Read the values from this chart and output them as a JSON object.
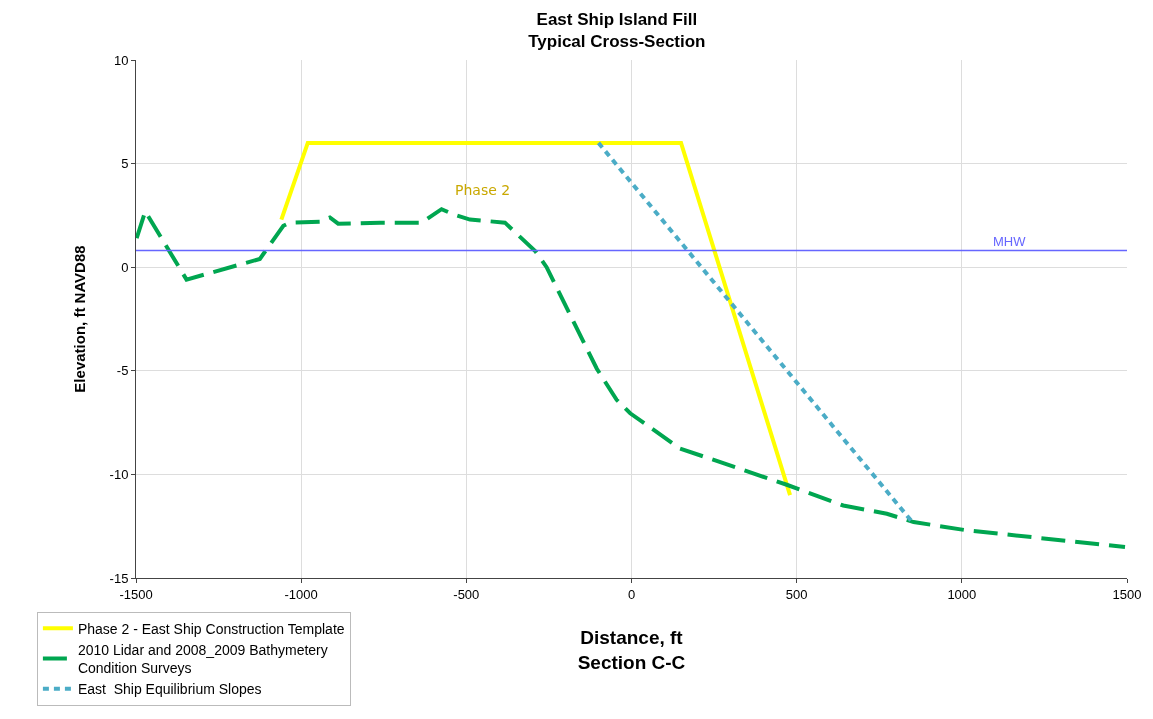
{
  "chart_data": {
    "type": "line",
    "title": "East Ship Island Fill\nTypical Cross-Section",
    "xlabel": "Distance, ft\nSection C-C",
    "ylabel": "Elevation, ft NAVD88",
    "xlim": [
      -1500,
      1500
    ],
    "xticks": [
      -1500,
      -1000,
      -500,
      0,
      500,
      1000,
      1500
    ],
    "ylim": [
      -15,
      10
    ],
    "yticks": [
      -15,
      -10,
      -5,
      0,
      5,
      10
    ],
    "grid": true,
    "legend": "bottom left",
    "marker": "none",
    "series": [
      {
        "name": "Phase 2 - East Ship Construction Template",
        "color": "#ffff00",
        "line_style": "solid",
        "x": [
          -1060,
          -980,
          150,
          480
        ],
        "values": [
          2.3,
          6,
          6,
          -11
        ]
      },
      {
        "name": "2010 Lidar and 2008_2009 Bathymetery\nCondition Surveys",
        "color": "#00a650",
        "line_style": "dashed",
        "x": [
          -1498,
          -1472,
          -1347,
          -1125,
          -1054,
          -1034,
          -943,
          -913,
          -888,
          -761,
          -635,
          -575,
          -539,
          -489,
          -383,
          -290,
          -257,
          -105,
          -45,
          -4,
          147,
          470,
          641,
          773,
          854,
          1015,
          1494
        ],
        "values": [
          1.4,
          2.7,
          -0.6,
          0.4,
          2.0,
          2.15,
          2.2,
          2.4,
          2.1,
          2.15,
          2.15,
          2.8,
          2.55,
          2.3,
          2.15,
          0.75,
          0.0,
          -4.9,
          -6.4,
          -7.05,
          -8.75,
          -10.5,
          -11.5,
          -11.9,
          -12.3,
          -12.7,
          -13.5
        ]
      },
      {
        "name": "East  Ship Equilibrium Slopes",
        "color": "#4bacc6",
        "line_style": "dotted",
        "x": [
          -100,
          850
        ],
        "values": [
          6,
          -12.3
        ]
      }
    ],
    "ref_lines": [
      {
        "axis": "y",
        "value": 0.8,
        "label": "MHW",
        "color": "#6666ff"
      }
    ],
    "annotations": [
      "Phase 2"
    ]
  }
}
